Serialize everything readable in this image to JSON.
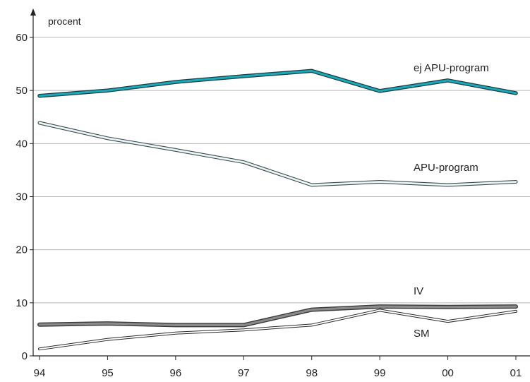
{
  "chart_data": {
    "type": "line",
    "y_unit_label": "procent",
    "categories": [
      "94",
      "95",
      "96",
      "97",
      "98",
      "99",
      "00",
      "01"
    ],
    "ylim": [
      0,
      60
    ],
    "y_ticks": [
      0,
      10,
      20,
      30,
      40,
      50,
      60
    ],
    "grid": true,
    "legend": "none",
    "series": [
      {
        "name": "ej APU-program",
        "values": [
          49,
          50,
          51.6,
          52.7,
          53.7,
          49.9,
          51.9,
          49.5
        ],
        "color": "#0e8e9e",
        "style": "double-teal"
      },
      {
        "name": "APU-program",
        "values": [
          43.9,
          41,
          38.8,
          36.5,
          32.2,
          32.8,
          32.2,
          32.8
        ],
        "color": "#eaf6f6",
        "style": "outlined-light"
      },
      {
        "name": "IV",
        "values": [
          5.9,
          6.1,
          5.8,
          5.8,
          8.7,
          9.3,
          9.2,
          9.3
        ],
        "color": "#777777",
        "style": "outlined-gray"
      },
      {
        "name": "SM",
        "values": [
          1.3,
          3.1,
          4.3,
          4.9,
          5.8,
          8.6,
          6.5,
          8.4
        ],
        "color": "#ffffff",
        "style": "outlined-white"
      }
    ]
  }
}
